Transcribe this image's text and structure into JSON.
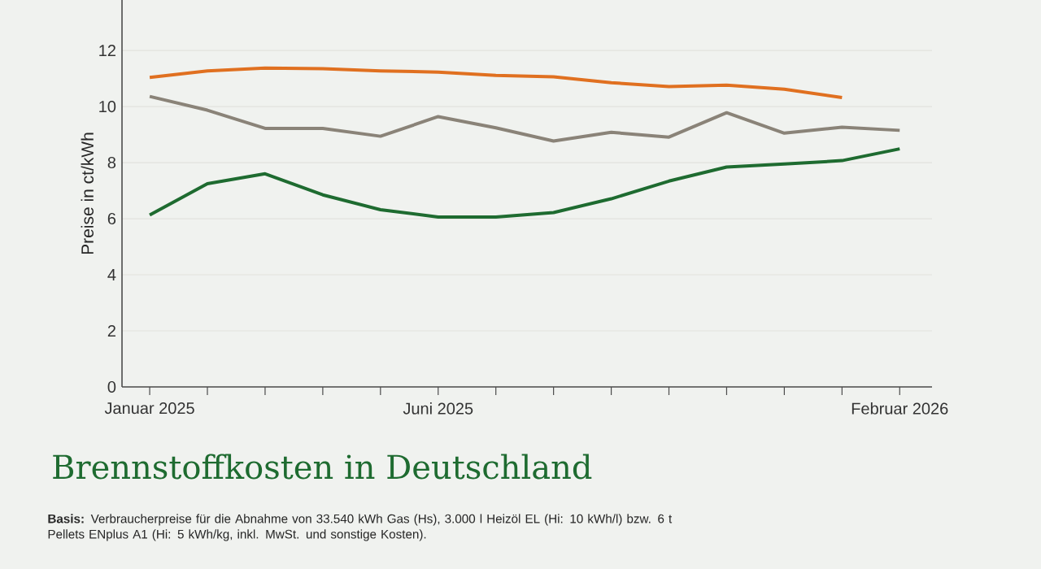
{
  "chart_data": {
    "type": "line",
    "title": "Brennstoffkosten in Deutschland",
    "ylabel": "Preise in ct/kWh",
    "categories": [
      "Januar 2025",
      null,
      null,
      null,
      null,
      "Juni 2025",
      null,
      null,
      null,
      null,
      null,
      null,
      null,
      "Februar 2026"
    ],
    "series": [
      {
        "color": "#e07020",
        "values": [
          11.04,
          11.27,
          11.37,
          11.35,
          11.27,
          11.23,
          11.11,
          11.06,
          10.85,
          10.71,
          10.76,
          10.62,
          10.32,
          null
        ]
      },
      {
        "color": "#8a8378",
        "values": [
          10.36,
          9.87,
          9.22,
          9.22,
          8.94,
          9.64,
          9.24,
          8.77,
          9.08,
          8.91,
          9.78,
          9.05,
          9.26,
          9.15
        ]
      },
      {
        "color": "#1e6b30",
        "values": [
          6.13,
          7.25,
          7.6,
          6.85,
          6.32,
          6.06,
          6.06,
          6.22,
          6.71,
          7.34,
          7.84,
          7.95,
          8.07,
          8.49
        ]
      }
    ],
    "ylim": [
      0,
      13.8
    ],
    "yticks": [
      0,
      2,
      4,
      6,
      8,
      10,
      12
    ],
    "grid": "y",
    "marker": "none",
    "line_style": "solid",
    "annotations": [
      "**Basis:** Verbraucherpreise für die Abnahme von 33.540 kWh Gas (Hs), 3.000 l Heizöl EL (Hi: 10 kWh/l) bzw. 6 t Pellets ENplus A1 (Hi: 5 kWh/kg, inkl. MwSt. und sonstige Kosten)."
    ]
  }
}
